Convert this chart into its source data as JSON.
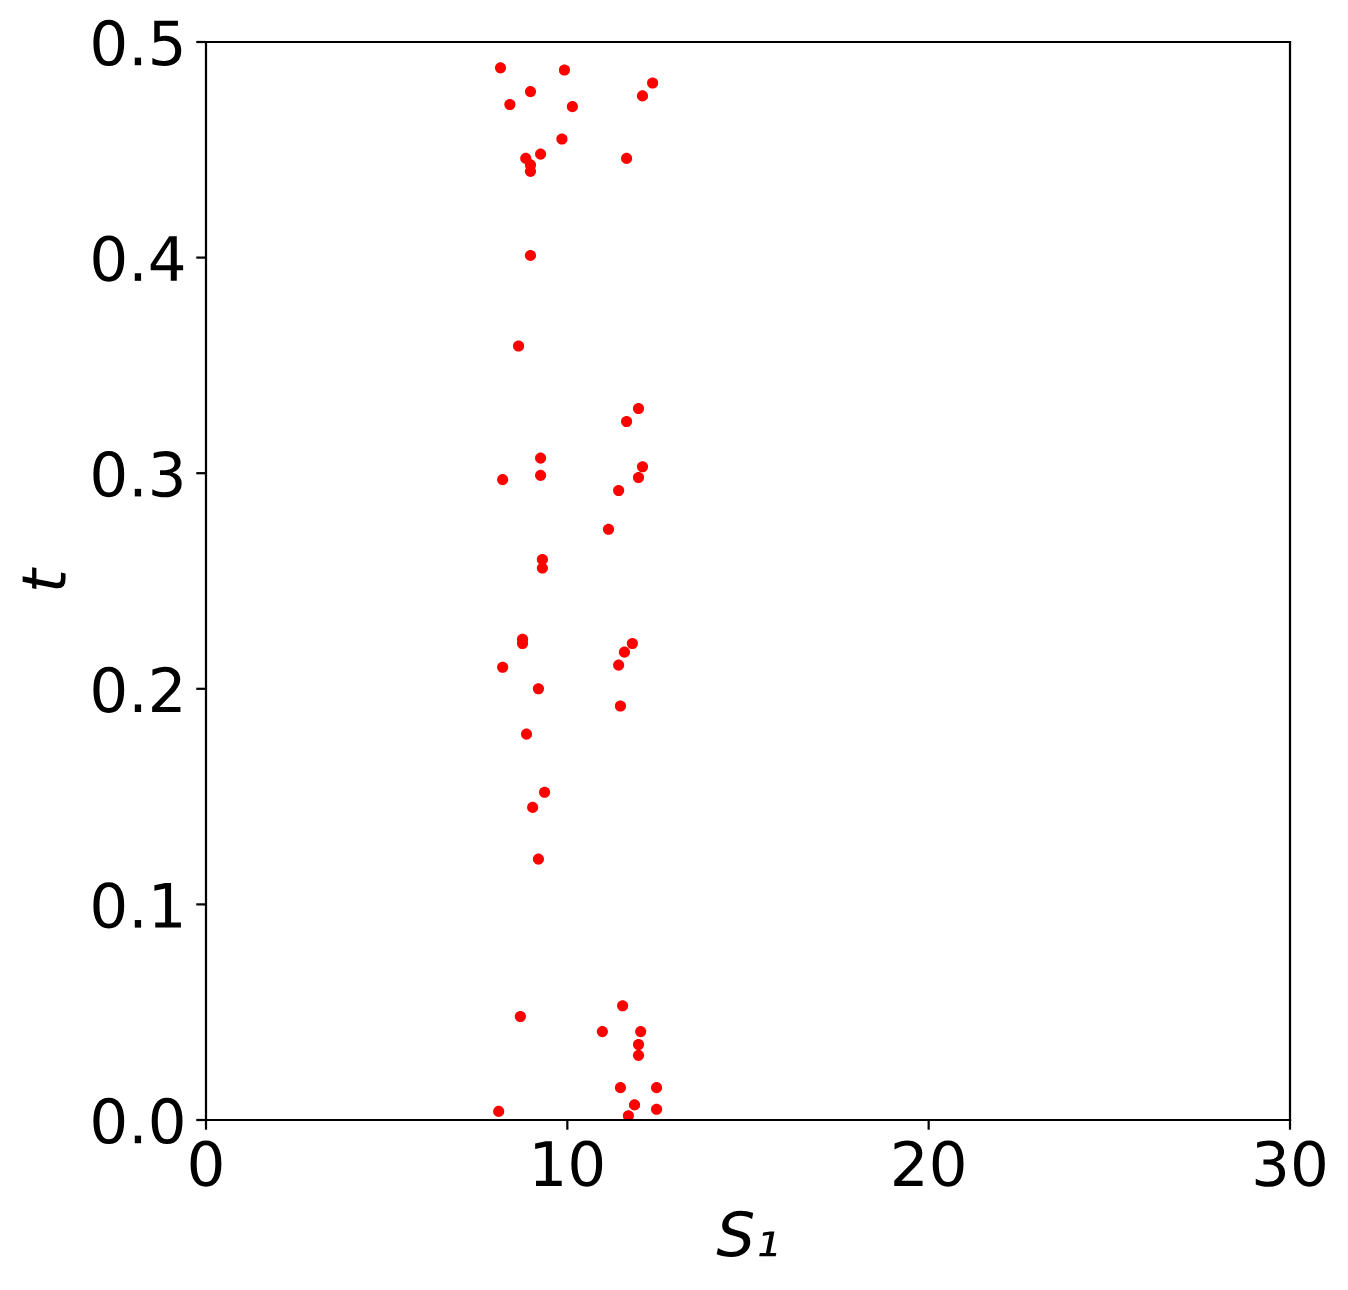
{
  "chart_data": {
    "type": "scatter",
    "xlabel": "S₁",
    "ylabel": "t",
    "xlim": [
      0,
      30
    ],
    "xticks": [
      0,
      10,
      20,
      30
    ],
    "ylim": [
      0,
      0.5
    ],
    "yticks": [
      {
        "value": 0,
        "label": "0.0"
      },
      0.1,
      0.2,
      0.3,
      0.4,
      0.5
    ],
    "grid": false,
    "marker": "circle",
    "series": [
      {
        "color": "#ff0000",
        "x": [
          8.15,
          9.92,
          8.98,
          8.41,
          10.14,
          12.36,
          12.08,
          9.85,
          9.26,
          8.85,
          8.98,
          8.98,
          11.64,
          8.98,
          8.65,
          11.97,
          11.64,
          9.26,
          9.26,
          8.21,
          12.08,
          11.97,
          11.42,
          11.14,
          9.31,
          9.31,
          8.76,
          8.76,
          8.21,
          11.8,
          11.58,
          11.42,
          9.2,
          11.47,
          8.87,
          9.37,
          9.04,
          9.2,
          8.7,
          11.53,
          10.97,
          12.03,
          11.97,
          11.97,
          11.47,
          12.47,
          11.86,
          12.47,
          11.69,
          8.1
        ],
        "values": [
          0.488,
          0.487,
          0.477,
          0.471,
          0.47,
          0.481,
          0.475,
          0.455,
          0.448,
          0.446,
          0.443,
          0.44,
          0.446,
          0.401,
          0.359,
          0.33,
          0.324,
          0.307,
          0.299,
          0.297,
          0.303,
          0.298,
          0.292,
          0.274,
          0.26,
          0.256,
          0.223,
          0.221,
          0.21,
          0.221,
          0.217,
          0.211,
          0.2,
          0.192,
          0.179,
          0.152,
          0.145,
          0.121,
          0.048,
          0.053,
          0.041,
          0.041,
          0.035,
          0.03,
          0.015,
          0.015,
          0.007,
          0.005,
          0.002,
          0.004
        ]
      }
    ]
  }
}
